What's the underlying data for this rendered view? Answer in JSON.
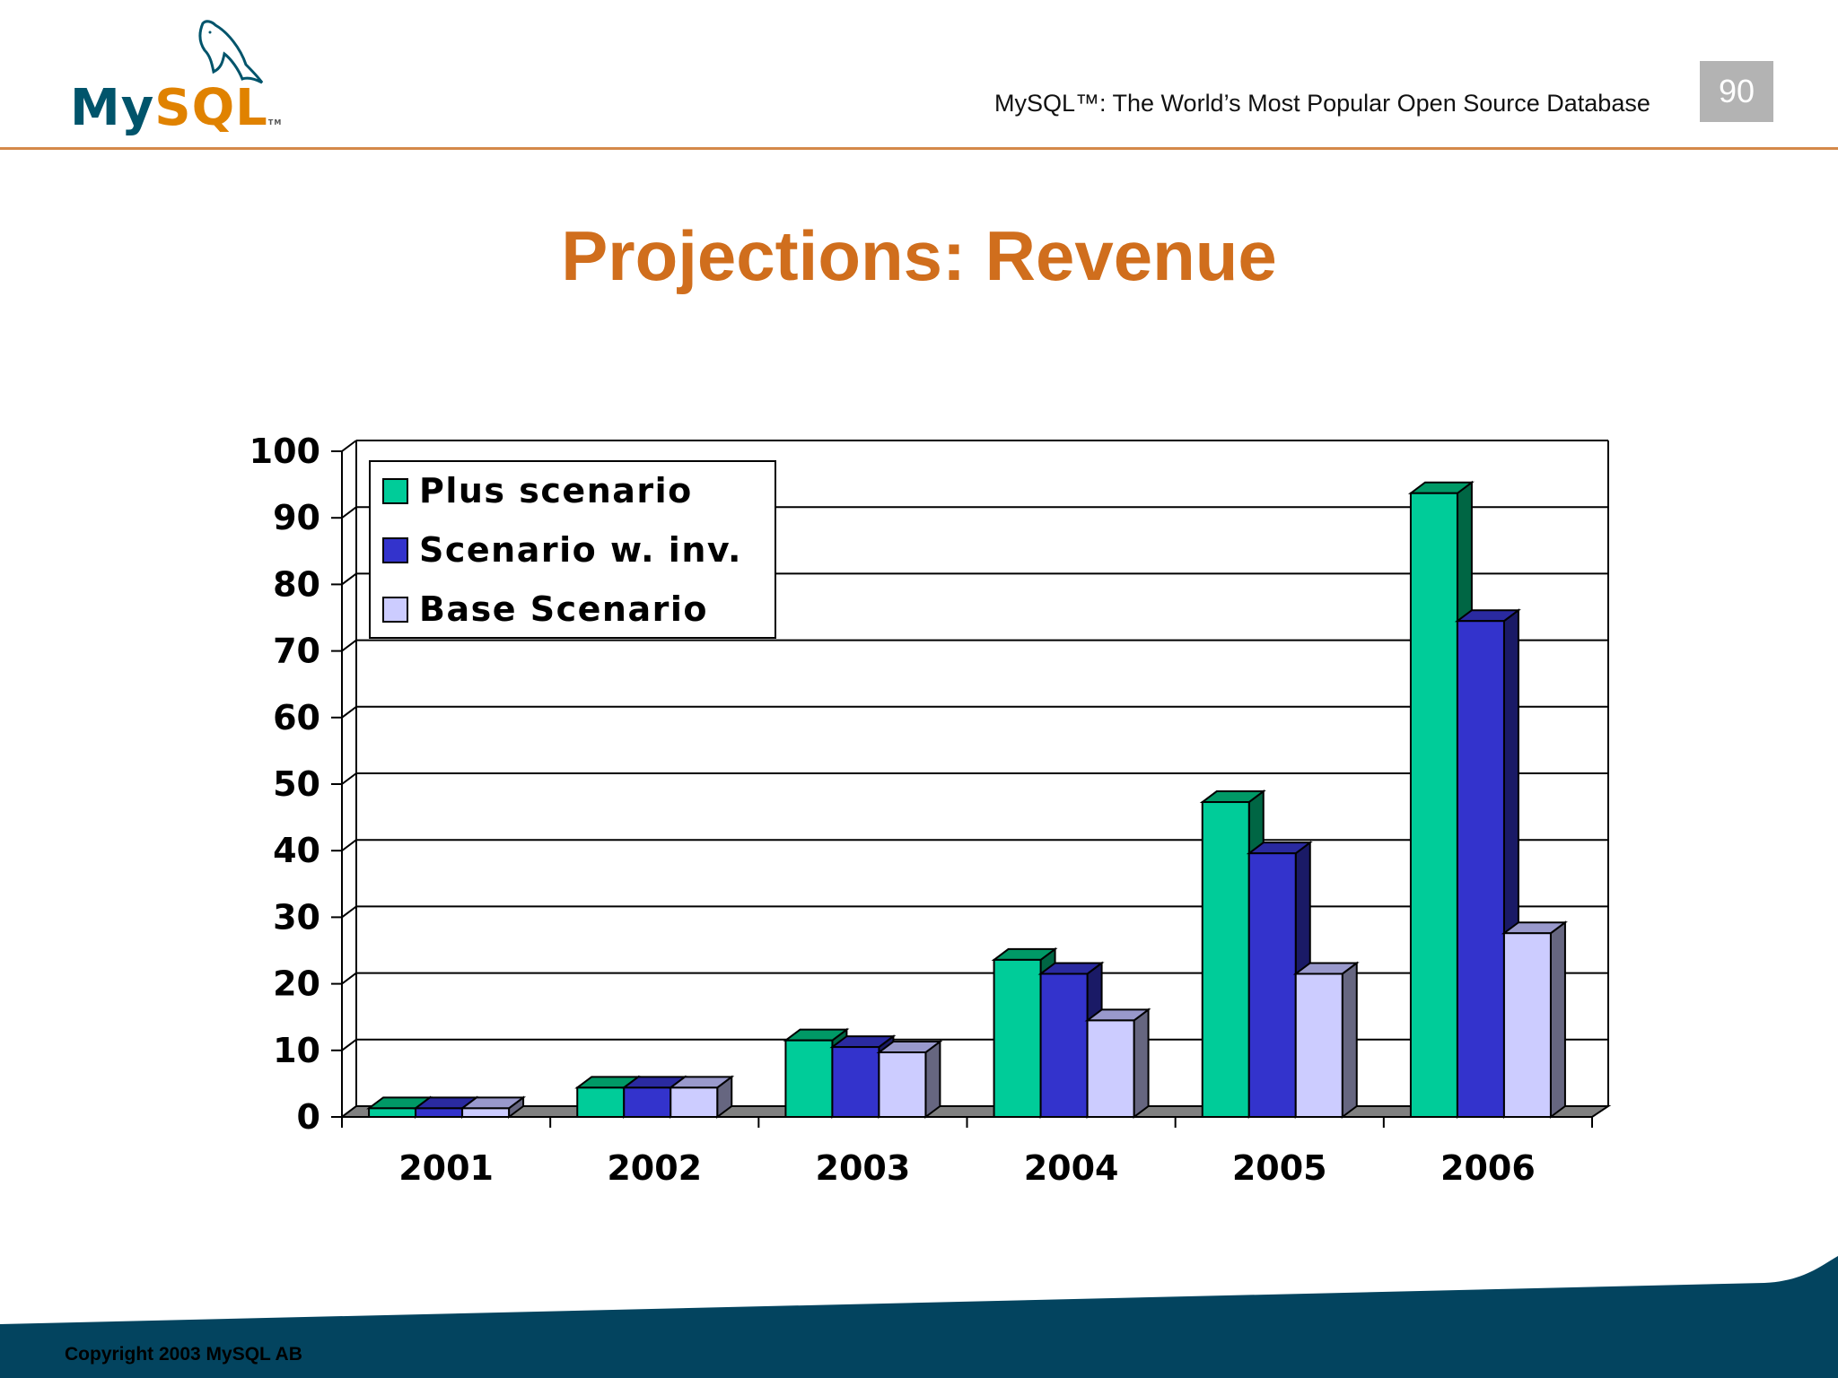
{
  "header": {
    "logo_my": "My",
    "logo_sql": "SQL",
    "logo_tm": "TM",
    "tagline": "MySQL™: The World’s Most Popular Open Source Database",
    "page_number": "90"
  },
  "slide": {
    "title": "Projections: Revenue"
  },
  "footer": {
    "copyright": "Copyright 2003 MySQL AB"
  },
  "colors": {
    "accent_orange": "#d06e1d",
    "brand_blue": "#00546b",
    "footer_bg": "#03445f",
    "plus": "#00cc99",
    "inv": "#3333cc",
    "base": "#ccccff"
  },
  "chart_data": {
    "type": "bar",
    "style": "3d-clustered-column",
    "title": "Projections: Revenue",
    "xlabel": "",
    "ylabel": "",
    "ylim": [
      0,
      100
    ],
    "yticks": [
      0,
      10,
      20,
      30,
      40,
      50,
      60,
      70,
      80,
      90,
      100
    ],
    "grid": true,
    "legend_position": "top-left inside",
    "categories": [
      "2001",
      "2002",
      "2003",
      "2004",
      "2005",
      "2006"
    ],
    "series": [
      {
        "name": "Plus scenario",
        "color": "#00cc99",
        "values": [
          1.3,
          4.4,
          11.5,
          23.6,
          47.3,
          93.7
        ]
      },
      {
        "name": "Scenario w. inv.",
        "color": "#3333cc",
        "values": [
          1.3,
          4.4,
          10.5,
          21.5,
          39.6,
          74.5
        ]
      },
      {
        "name": "Base Scenario",
        "color": "#ccccff",
        "values": [
          1.3,
          4.4,
          9.7,
          14.5,
          21.5,
          27.6
        ]
      }
    ]
  }
}
